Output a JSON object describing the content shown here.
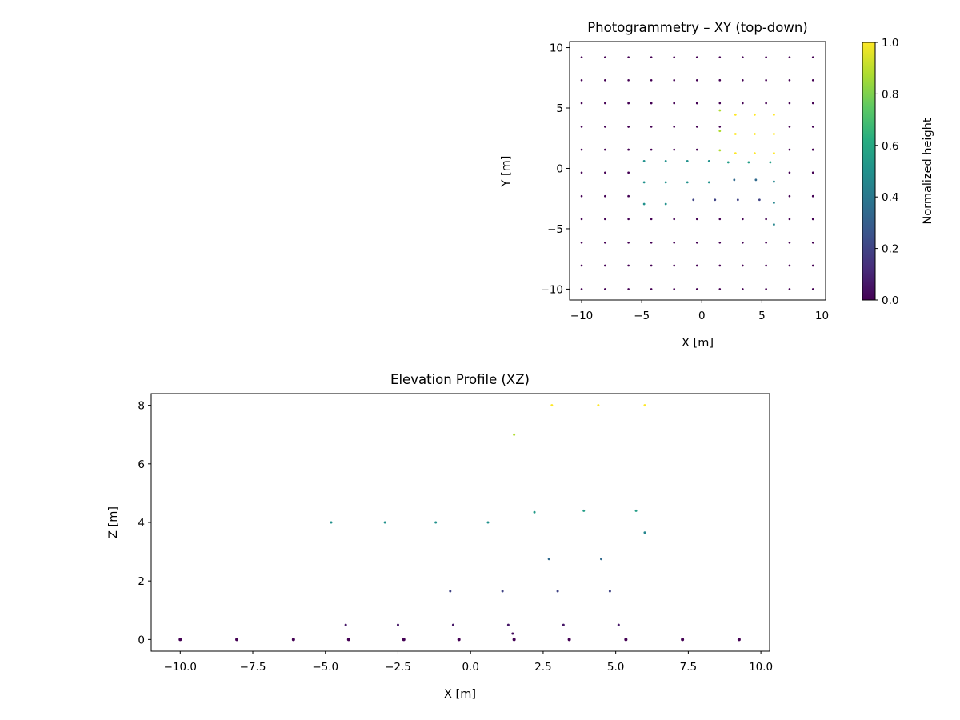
{
  "chart_data": [
    {
      "type": "scatter",
      "title": "Photogrammetry – XY (top-down)",
      "xlabel": "X [m]",
      "ylabel": "Y [m]",
      "xlim": [
        -11,
        10.3
      ],
      "ylim": [
        -10.9,
        10.5
      ],
      "xticks": [
        -10,
        -5,
        0,
        5,
        10
      ],
      "yticks": [
        -10,
        -5,
        0,
        5,
        10
      ],
      "grid": false,
      "colormap": "viridis",
      "colorbar": {
        "label": "Normalized height",
        "range": [
          0,
          1
        ],
        "ticks": [
          "0.0",
          "0.2",
          "0.4",
          "0.6",
          "0.8",
          "1.0"
        ]
      },
      "points_grid": {
        "description_values": "ground-level grid points (normalized height 0)",
        "x": [
          -10,
          -8.05,
          -6.1,
          -4.2,
          -2.3,
          -0.4,
          1.5,
          3.4,
          5.35,
          7.3,
          9.25
        ],
        "y": [
          9.2,
          7.3,
          5.4,
          3.45,
          1.55,
          -0.35,
          -2.3,
          -4.2,
          -6.15,
          -8.05,
          -10
        ]
      },
      "points": [
        {
          "x": -4.8,
          "y": 0.6,
          "c": 0.5
        },
        {
          "x": -3.0,
          "y": 0.6,
          "c": 0.5
        },
        {
          "x": -1.2,
          "y": 0.6,
          "c": 0.5
        },
        {
          "x": 0.6,
          "y": 0.6,
          "c": 0.5
        },
        {
          "x": 2.2,
          "y": 0.5,
          "c": 0.55
        },
        {
          "x": 3.9,
          "y": 0.5,
          "c": 0.55
        },
        {
          "x": 5.7,
          "y": 0.5,
          "c": 0.55
        },
        {
          "x": -4.8,
          "y": -1.15,
          "c": 0.5
        },
        {
          "x": -3.0,
          "y": -1.15,
          "c": 0.5
        },
        {
          "x": -1.2,
          "y": -1.15,
          "c": 0.5
        },
        {
          "x": 0.6,
          "y": -1.15,
          "c": 0.5
        },
        {
          "x": 2.7,
          "y": -0.95,
          "c": 0.34
        },
        {
          "x": 4.5,
          "y": -0.95,
          "c": 0.34
        },
        {
          "x": 6.0,
          "y": -1.1,
          "c": 0.45
        },
        {
          "x": -4.8,
          "y": -2.95,
          "c": 0.5
        },
        {
          "x": -3.0,
          "y": -2.95,
          "c": 0.5
        },
        {
          "x": -0.7,
          "y": -2.6,
          "c": 0.2
        },
        {
          "x": 1.1,
          "y": -2.6,
          "c": 0.2
        },
        {
          "x": 3.0,
          "y": -2.6,
          "c": 0.2
        },
        {
          "x": 4.8,
          "y": -2.6,
          "c": 0.2
        },
        {
          "x": 6.0,
          "y": -2.85,
          "c": 0.45
        },
        {
          "x": 6.0,
          "y": -4.65,
          "c": 0.45
        },
        {
          "x": 1.5,
          "y": 4.8,
          "c": 0.88
        },
        {
          "x": 1.5,
          "y": 3.1,
          "c": 0.88
        },
        {
          "x": 1.5,
          "y": 1.5,
          "c": 0.88
        },
        {
          "x": 2.8,
          "y": 4.45,
          "c": 1.0
        },
        {
          "x": 4.4,
          "y": 4.45,
          "c": 1.0
        },
        {
          "x": 6.0,
          "y": 4.45,
          "c": 1.0
        },
        {
          "x": 2.8,
          "y": 2.85,
          "c": 1.0
        },
        {
          "x": 4.4,
          "y": 2.85,
          "c": 1.0
        },
        {
          "x": 6.0,
          "y": 2.85,
          "c": 1.0
        },
        {
          "x": 2.8,
          "y": 1.25,
          "c": 1.0
        },
        {
          "x": 4.4,
          "y": 1.25,
          "c": 1.0
        },
        {
          "x": 6.0,
          "y": 1.25,
          "c": 1.0
        }
      ]
    },
    {
      "type": "scatter",
      "title": "Elevation Profile (XZ)",
      "xlabel": "X [m]",
      "ylabel": "Z [m]",
      "xlim": [
        -11,
        10.3
      ],
      "ylim": [
        -0.4,
        8.4
      ],
      "xticks": [
        -10,
        -7.5,
        -5,
        -2.5,
        0,
        2.5,
        5,
        7.5,
        10
      ],
      "xtick_labels": [
        "−10.0",
        "−7.5",
        "−5.0",
        "−2.5",
        "0.0",
        "2.5",
        "5.0",
        "7.5",
        "10.0"
      ],
      "yticks": [
        0,
        2,
        4,
        6,
        8
      ],
      "grid": false,
      "colormap": "viridis",
      "points": [
        {
          "x": -10,
          "z": 0,
          "c": 0
        },
        {
          "x": -8.05,
          "z": 0,
          "c": 0
        },
        {
          "x": -6.1,
          "z": 0,
          "c": 0
        },
        {
          "x": -4.2,
          "z": 0,
          "c": 0
        },
        {
          "x": -2.3,
          "z": 0,
          "c": 0
        },
        {
          "x": -0.4,
          "z": 0,
          "c": 0
        },
        {
          "x": 1.5,
          "z": 0,
          "c": 0
        },
        {
          "x": 3.4,
          "z": 0,
          "c": 0
        },
        {
          "x": 5.35,
          "z": 0,
          "c": 0
        },
        {
          "x": 7.3,
          "z": 0,
          "c": 0
        },
        {
          "x": 9.25,
          "z": 0,
          "c": 0
        },
        {
          "x": 1.45,
          "z": 0.2,
          "c": 0.03
        },
        {
          "x": -4.3,
          "z": 0.5,
          "c": 0.06
        },
        {
          "x": -2.5,
          "z": 0.5,
          "c": 0.06
        },
        {
          "x": -0.6,
          "z": 0.5,
          "c": 0.06
        },
        {
          "x": 1.3,
          "z": 0.5,
          "c": 0.06
        },
        {
          "x": 3.2,
          "z": 0.5,
          "c": 0.06
        },
        {
          "x": 5.1,
          "z": 0.5,
          "c": 0.06
        },
        {
          "x": -0.7,
          "z": 1.65,
          "c": 0.2
        },
        {
          "x": 1.1,
          "z": 1.65,
          "c": 0.2
        },
        {
          "x": 3.0,
          "z": 1.65,
          "c": 0.2
        },
        {
          "x": 4.8,
          "z": 1.65,
          "c": 0.2
        },
        {
          "x": 2.7,
          "z": 2.75,
          "c": 0.34
        },
        {
          "x": 4.5,
          "z": 2.75,
          "c": 0.34
        },
        {
          "x": 6.0,
          "z": 3.65,
          "c": 0.45
        },
        {
          "x": -4.8,
          "z": 4.0,
          "c": 0.5
        },
        {
          "x": -2.95,
          "z": 4.0,
          "c": 0.5
        },
        {
          "x": -1.2,
          "z": 4.0,
          "c": 0.5
        },
        {
          "x": 0.6,
          "z": 4.0,
          "c": 0.5
        },
        {
          "x": 2.2,
          "z": 4.35,
          "c": 0.54
        },
        {
          "x": 3.9,
          "z": 4.4,
          "c": 0.55
        },
        {
          "x": 5.7,
          "z": 4.4,
          "c": 0.55
        },
        {
          "x": 1.5,
          "z": 7.0,
          "c": 0.88
        },
        {
          "x": 2.8,
          "z": 8.0,
          "c": 1.0
        },
        {
          "x": 4.4,
          "z": 8.0,
          "c": 1.0
        },
        {
          "x": 6.0,
          "z": 8.0,
          "c": 1.0
        }
      ]
    }
  ]
}
